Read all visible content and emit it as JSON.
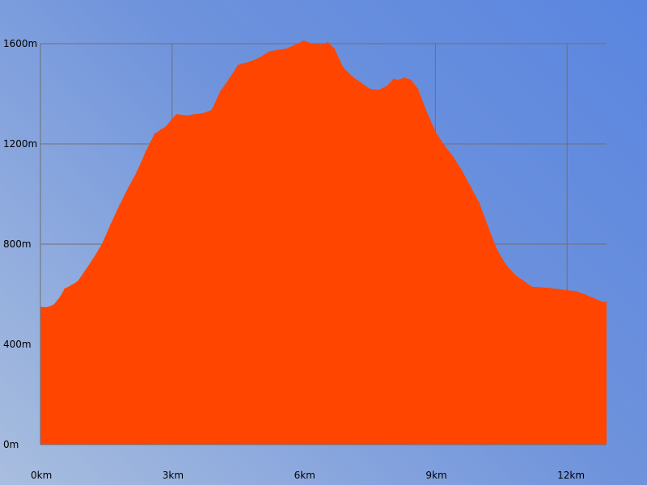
{
  "chart_data": {
    "type": "area",
    "title": "",
    "xlabel": "",
    "ylabel": "",
    "xlim": [
      0,
      12.9
    ],
    "ylim": [
      0,
      1600
    ],
    "grid": true,
    "legend": "none",
    "x_ticks": [
      {
        "value": 0,
        "label": "0km"
      },
      {
        "value": 3,
        "label": "3km"
      },
      {
        "value": 6,
        "label": "6km"
      },
      {
        "value": 9,
        "label": "9km"
      },
      {
        "value": 12,
        "label": "12km"
      }
    ],
    "y_ticks": [
      {
        "value": 0,
        "label": "0m"
      },
      {
        "value": 400,
        "label": "400m"
      },
      {
        "value": 800,
        "label": "800m"
      },
      {
        "value": 1200,
        "label": "1200m"
      },
      {
        "value": 1600,
        "label": "1600m"
      }
    ],
    "series": [
      {
        "color": "#ff4500",
        "x": [
          0,
          0.15,
          0.3,
          0.45,
          0.55,
          0.7,
          0.85,
          1.0,
          1.2,
          1.4,
          1.6,
          1.8,
          2.0,
          2.2,
          2.4,
          2.6,
          2.75,
          2.85,
          3.0,
          3.1,
          3.2,
          3.35,
          3.5,
          3.7,
          3.9,
          4.1,
          4.3,
          4.5,
          4.6,
          4.8,
          5.0,
          5.2,
          5.4,
          5.6,
          5.8,
          6.0,
          6.1,
          6.2,
          6.4,
          6.55,
          6.7,
          6.9,
          7.1,
          7.3,
          7.5,
          7.7,
          7.9,
          8.05,
          8.15,
          8.3,
          8.45,
          8.6,
          8.8,
          9.0,
          9.2,
          9.4,
          9.6,
          9.8,
          10.0,
          10.2,
          10.4,
          10.6,
          10.8,
          11.0,
          11.2,
          11.4,
          11.6,
          11.8,
          12.0,
          12.2,
          12.4,
          12.6,
          12.8,
          12.9
        ],
        "values": [
          550,
          548,
          558,
          590,
          622,
          636,
          652,
          690,
          742,
          800,
          880,
          955,
          1025,
          1090,
          1170,
          1240,
          1258,
          1268,
          1300,
          1318,
          1316,
          1313,
          1318,
          1322,
          1335,
          1410,
          1460,
          1515,
          1520,
          1530,
          1545,
          1568,
          1575,
          1580,
          1595,
          1612,
          1605,
          1600,
          1597,
          1606,
          1580,
          1505,
          1470,
          1445,
          1420,
          1415,
          1432,
          1460,
          1455,
          1465,
          1455,
          1420,
          1330,
          1250,
          1195,
          1150,
          1095,
          1030,
          965,
          870,
          780,
          720,
          680,
          655,
          630,
          628,
          625,
          620,
          616,
          612,
          600,
          585,
          570,
          568
        ]
      }
    ]
  }
}
